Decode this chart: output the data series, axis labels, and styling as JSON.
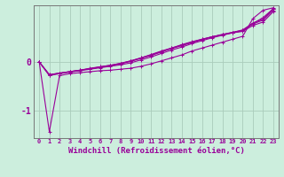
{
  "xlabel": "Windchill (Refroidissement éolien,°C)",
  "background_color": "#cceedd",
  "line_color": "#990099",
  "marker": "+",
  "markersize": 3,
  "linewidth": 0.8,
  "xlim": [
    -0.5,
    23.5
  ],
  "ylim": [
    -1.55,
    1.15
  ],
  "yticks": [
    0,
    -1
  ],
  "xticks": [
    0,
    1,
    2,
    3,
    4,
    5,
    6,
    7,
    8,
    9,
    10,
    11,
    12,
    13,
    14,
    15,
    16,
    17,
    18,
    19,
    20,
    21,
    22,
    23
  ],
  "grid_color": "#aaccbb",
  "series": [
    [
      0.0,
      -1.42,
      -0.28,
      -0.24,
      -0.22,
      -0.2,
      -0.18,
      -0.17,
      -0.15,
      -0.13,
      -0.09,
      -0.04,
      0.02,
      0.08,
      0.14,
      0.22,
      0.28,
      0.34,
      0.4,
      0.46,
      0.52,
      0.88,
      1.05,
      1.1
    ],
    [
      0.0,
      -0.28,
      -0.24,
      -0.21,
      -0.18,
      -0.15,
      -0.12,
      -0.09,
      -0.06,
      -0.02,
      0.04,
      0.1,
      0.17,
      0.24,
      0.3,
      0.37,
      0.43,
      0.49,
      0.54,
      0.59,
      0.63,
      0.78,
      0.9,
      1.08
    ],
    [
      0.0,
      -0.27,
      -0.23,
      -0.2,
      -0.17,
      -0.14,
      -0.11,
      -0.08,
      -0.04,
      0.01,
      0.07,
      0.13,
      0.2,
      0.27,
      0.33,
      0.39,
      0.45,
      0.51,
      0.55,
      0.6,
      0.65,
      0.79,
      0.87,
      1.08
    ],
    [
      0.0,
      -0.26,
      -0.23,
      -0.2,
      -0.17,
      -0.14,
      -0.1,
      -0.07,
      -0.03,
      0.02,
      0.08,
      0.14,
      0.21,
      0.28,
      0.34,
      0.4,
      0.46,
      0.51,
      0.56,
      0.6,
      0.64,
      0.77,
      0.85,
      1.05
    ],
    [
      0.0,
      -0.26,
      -0.23,
      -0.2,
      -0.17,
      -0.13,
      -0.1,
      -0.07,
      -0.03,
      0.02,
      0.08,
      0.15,
      0.22,
      0.28,
      0.35,
      0.41,
      0.46,
      0.51,
      0.55,
      0.59,
      0.62,
      0.74,
      0.81,
      1.02
    ]
  ]
}
